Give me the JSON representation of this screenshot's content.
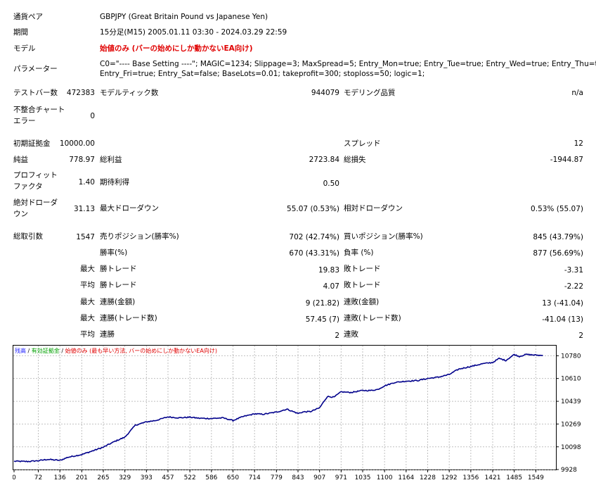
{
  "report": {
    "symbol_label": "通貨ペア",
    "symbol_value": "GBPJPY (Great Britain Pound vs Japanese Yen)",
    "period_label": "期間",
    "period_value": "15分足(M15) 2005.01.11 03:30 - 2024.03.29 22:59",
    "model_label": "モデル",
    "model_value": "始値のみ (バーの始めにしか動かないEA向け)",
    "params_label": "パラメーター",
    "params_line1": "C0=\"---- Base Setting ----\"; MAGIC=1234; Slippage=3; MaxSpread=5; Entry_Mon=true; Entry_Tue=true; Entry_Wed=true; Entry_Thu=true;",
    "params_line2": "Entry_Fri=true; Entry_Sat=false; BaseLots=0.01; takeprofit=300; stoploss=50; logic=1;"
  },
  "stats": {
    "bars_label": "テストバー数",
    "bars_value": "472383",
    "ticks_label": "モデルティック数",
    "ticks_value": "944079",
    "quality_label": "モデリング品質",
    "quality_value": "n/a",
    "mismatch_label_1": "不整合チャート",
    "mismatch_label_2": "エラー",
    "mismatch_value": "0",
    "deposit_label": "初期証拠金",
    "deposit_value": "10000.00",
    "spread_label": "スプレッド",
    "spread_value": "12",
    "net_label": "純益",
    "net_value": "778.97",
    "gross_profit_label": "総利益",
    "gross_profit_value": "2723.84",
    "gross_loss_label": "総損失",
    "gross_loss_value": "-1944.87",
    "pf_label_1": "プロフィット",
    "pf_label_2": "ファクタ",
    "pf_value": "1.40",
    "expected_label": "期待利得",
    "expected_value": "0.50",
    "abs_dd_label_1": "絶対ドローダ",
    "abs_dd_label_2": "ウン",
    "abs_dd_value": "31.13",
    "max_dd_label": "最大ドローダウン",
    "max_dd_value": "55.07 (0.53%)",
    "rel_dd_label": "相対ドローダウン",
    "rel_dd_value": "0.53% (55.07)",
    "total_trades_label": "総取引数",
    "total_trades_value": "1547",
    "short_label": "売りポジション(勝率%)",
    "short_value": "702 (42.74%)",
    "long_label": "買いポジション(勝率%)",
    "long_value": "845 (43.79%)",
    "win_rate_label": "勝率(%)",
    "win_rate_value": "670 (43.31%)",
    "loss_rate_label": "負率 (%)",
    "loss_rate_value": "877 (56.69%)",
    "max_label": "最大",
    "avg_label": "平均",
    "largest_win_label": "勝トレード",
    "largest_win_value": "19.83",
    "largest_loss_label": "敗トレード",
    "largest_loss_value": "-3.31",
    "avg_win_label": "勝トレード",
    "avg_win_value": "4.07",
    "avg_loss_label": "敗トレード",
    "avg_loss_value": "-2.22",
    "max_cons_wins_amt_label": "連勝(金額)",
    "max_cons_wins_amt_value": "9 (21.82)",
    "max_cons_loss_amt_label": "連敗(金額)",
    "max_cons_loss_amt_value": "13 (-41.04)",
    "max_cons_wins_cnt_label": "連勝(トレード数)",
    "max_cons_wins_cnt_value": "57.45 (7)",
    "max_cons_loss_cnt_label": "連敗(トレード数)",
    "max_cons_loss_cnt_value": "-41.04 (13)",
    "avg_cons_wins_label": "連勝",
    "avg_cons_wins_value": "2",
    "avg_cons_loss_label": "連敗",
    "avg_cons_loss_value": "2"
  },
  "legend": {
    "balance": "残高",
    "sep1": " / ",
    "equity": "有効証拠金",
    "sep2": " / ",
    "model": "始値のみ (最も早い方法, バーの始めにしか動かないEA向け)",
    "balance_color": "#1c1cff",
    "equity_color": "#00a000",
    "model_color": "#e00000"
  },
  "colors": {
    "line": "#00008b",
    "grid": "#c0c0c0",
    "model_value": "#e00000"
  },
  "chart_data": {
    "type": "line",
    "x_ticks": [
      0,
      72,
      136,
      201,
      265,
      329,
      393,
      457,
      522,
      586,
      650,
      714,
      779,
      843,
      907,
      971,
      1035,
      1100,
      1164,
      1228,
      1292,
      1356,
      1421,
      1485,
      1549
    ],
    "y_ticks": [
      9928,
      10098,
      10269,
      10439,
      10610,
      10780
    ],
    "xlim": [
      0,
      1590
    ],
    "ylim": [
      9928,
      10835
    ],
    "grid": true,
    "legend_position": "top-left",
    "series": [
      {
        "values_x": [
          0,
          40,
          72,
          100,
          136,
          160,
          201,
          230,
          265,
          300,
          329,
          360,
          393,
          420,
          457,
          490,
          522,
          550,
          586,
          620,
          650,
          680,
          714,
          740,
          779,
          810,
          843,
          860,
          880,
          907,
          930,
          950,
          971,
          1000,
          1035,
          1060,
          1080,
          1100,
          1130,
          1164,
          1200,
          1228,
          1260,
          1292,
          1320,
          1356,
          1390,
          1421,
          1440,
          1460,
          1485,
          1500,
          1520,
          1549,
          1570
        ],
        "values_y": [
          9990,
          9988,
          9994,
          10004,
          9996,
          10020,
          10040,
          10065,
          10095,
          10140,
          10170,
          10260,
          10285,
          10295,
          10322,
          10315,
          10320,
          10312,
          10310,
          10315,
          10295,
          10325,
          10345,
          10342,
          10358,
          10380,
          10348,
          10360,
          10362,
          10390,
          10475,
          10470,
          10510,
          10505,
          10520,
          10520,
          10528,
          10555,
          10580,
          10590,
          10595,
          10610,
          10620,
          10640,
          10680,
          10700,
          10720,
          10730,
          10760,
          10745,
          10790,
          10775,
          10790,
          10785,
          10782
        ]
      }
    ]
  }
}
